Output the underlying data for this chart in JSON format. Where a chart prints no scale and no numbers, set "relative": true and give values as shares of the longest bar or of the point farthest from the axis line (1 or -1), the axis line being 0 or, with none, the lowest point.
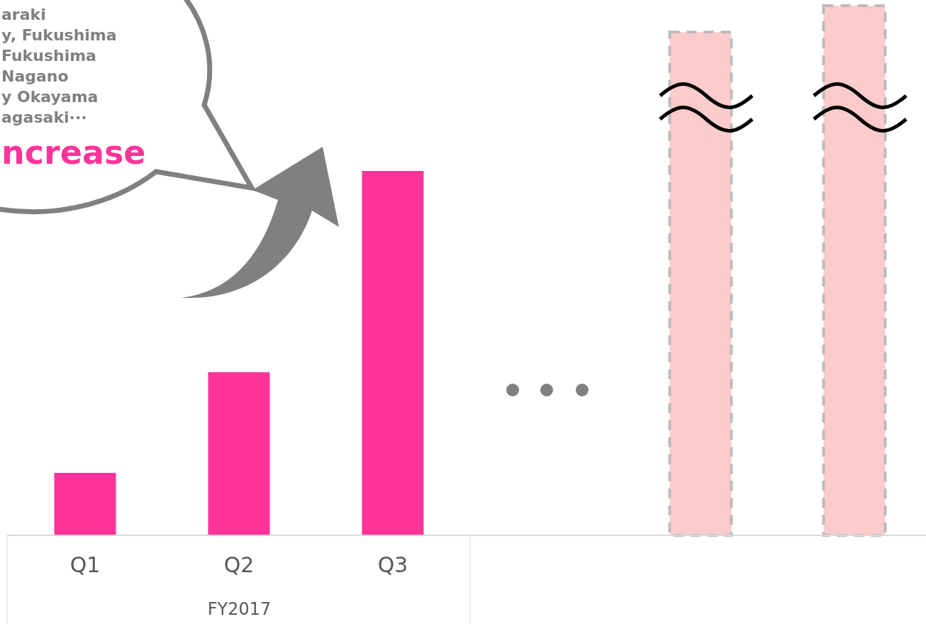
{
  "chart_data": {
    "type": "bar",
    "relative": true,
    "categories": [
      "Q1",
      "Q2",
      "Q3",
      null,
      null,
      null
    ],
    "values": [
      0.118,
      0.308,
      0.688,
      null,
      0.95,
      1
    ],
    "colors": [
      "#ff3399",
      "#ff3399",
      "#ff3399",
      null,
      "#fccbcb",
      "#fccbcb"
    ],
    "xlabel": "FY2017",
    "annotations": [
      "araki",
      "y, Fukushima",
      "Fukushima",
      "Nagano",
      "y Okayama",
      "agasaki···",
      "ncrease"
    ]
  }
}
